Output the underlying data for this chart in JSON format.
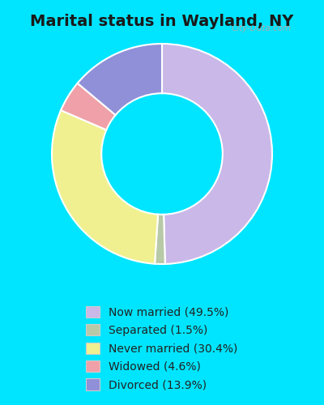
{
  "title": "Marital status in Wayland, NY",
  "slices": [
    {
      "label": "Now married (49.5%)",
      "value": 49.5,
      "color": "#c9b8e8"
    },
    {
      "label": "Separated (1.5%)",
      "value": 1.5,
      "color": "#b8c9a8"
    },
    {
      "label": "Never married (30.4%)",
      "value": 30.4,
      "color": "#f0f090"
    },
    {
      "label": "Widowed (4.6%)",
      "value": 4.6,
      "color": "#f0a0a8"
    },
    {
      "label": "Divorced (13.9%)",
      "value": 13.9,
      "color": "#9090d8"
    }
  ],
  "startangle": 90,
  "bg_outer": "#00e5ff",
  "chart_bg": "#d8f0e0",
  "title_color": "#1a1a1a",
  "title_fontsize": 14,
  "legend_fontsize": 10,
  "watermark": "City-Data.com"
}
